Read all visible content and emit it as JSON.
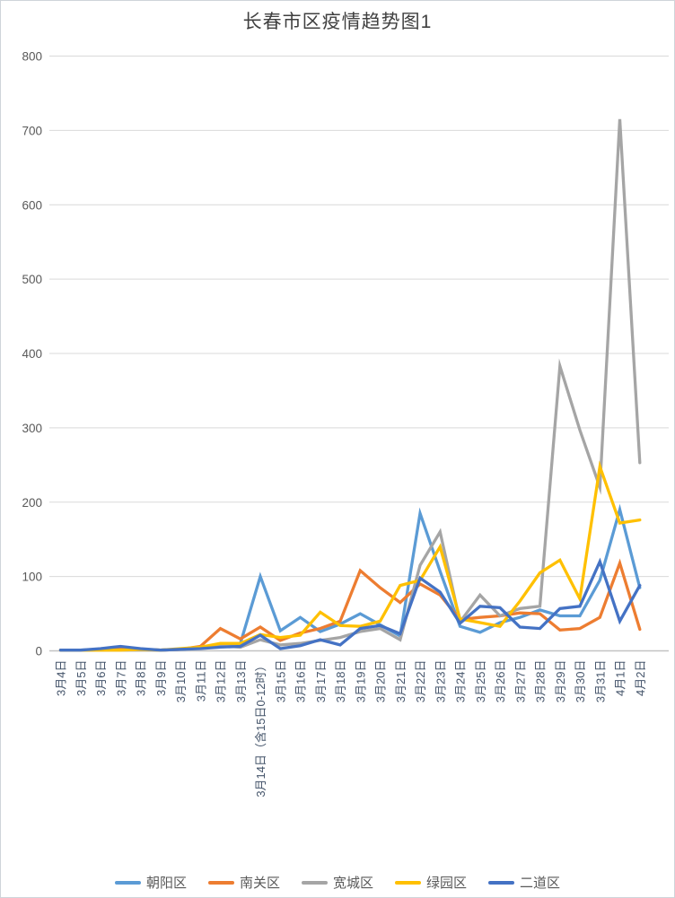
{
  "chart": {
    "title_color": "#404040",
    "xtick_color": "#44546A",
    "ytick_color": "#595959",
    "gridline_color": "#d9d9d9",
    "axis_line_color": "#c3c3c3",
    "legend_text_color": "#595959",
    "background": "#ffffff"
  },
  "chart_data": {
    "type": "line",
    "title": "长春市区疫情趋势图1",
    "xlabel": "",
    "ylabel": "",
    "ylim": [
      0,
      800
    ],
    "yticks": [
      0,
      100,
      200,
      300,
      400,
      500,
      600,
      700,
      800
    ],
    "grid": true,
    "legend_position": "bottom",
    "categories": [
      "3月4日",
      "3月5日",
      "3月6日",
      "3月7日",
      "3月8日",
      "3月9日",
      "3月10日",
      "3月11日",
      "3月12日",
      "3月13日",
      "3月14日（含15日0-12时）",
      "3月15日",
      "3月16日",
      "3月17日",
      "3月18日",
      "3月19日",
      "3月20日",
      "3月21日",
      "3月22日",
      "3月23日",
      "3月24日",
      "3月25日",
      "3月26日",
      "3月27日",
      "3月28日",
      "3月29日",
      "3月30日",
      "3月31日",
      "4月1日",
      "4月2日"
    ],
    "series": [
      {
        "name": "朝阳区",
        "color": "#5B9BD5",
        "values": [
          1,
          1,
          2,
          3,
          2,
          1,
          2,
          4,
          8,
          10,
          100,
          27,
          45,
          26,
          36,
          50,
          35,
          20,
          185,
          107,
          33,
          25,
          38,
          45,
          55,
          47,
          47,
          95,
          190,
          85
        ]
      },
      {
        "name": "南关区",
        "color": "#ED7D31",
        "values": [
          1,
          1,
          1,
          2,
          2,
          1,
          2,
          6,
          30,
          16,
          32,
          14,
          24,
          30,
          40,
          108,
          85,
          65,
          90,
          75,
          42,
          45,
          47,
          51,
          50,
          28,
          30,
          45,
          118,
          29
        ]
      },
      {
        "name": "宽城区",
        "color": "#A5A5A5",
        "values": [
          1,
          1,
          1,
          1,
          1,
          1,
          2,
          4,
          7,
          5,
          15,
          8,
          10,
          14,
          18,
          26,
          30,
          15,
          115,
          160,
          39,
          75,
          47,
          57,
          60,
          383,
          297,
          220,
          715,
          253
        ]
      },
      {
        "name": "绿园区",
        "color": "#FFC000",
        "values": [
          1,
          1,
          1,
          1,
          2,
          1,
          3,
          5,
          10,
          10,
          22,
          18,
          21,
          52,
          34,
          33,
          40,
          88,
          95,
          140,
          43,
          38,
          33,
          67,
          105,
          122,
          70,
          248,
          172,
          176
        ]
      },
      {
        "name": "二道区",
        "color": "#4472C4",
        "values": [
          1,
          1,
          3,
          6,
          3,
          1,
          2,
          3,
          5,
          6,
          21,
          3,
          7,
          15,
          8,
          30,
          34,
          23,
          98,
          79,
          37,
          60,
          58,
          32,
          30,
          57,
          60,
          120,
          40,
          88
        ]
      }
    ]
  }
}
